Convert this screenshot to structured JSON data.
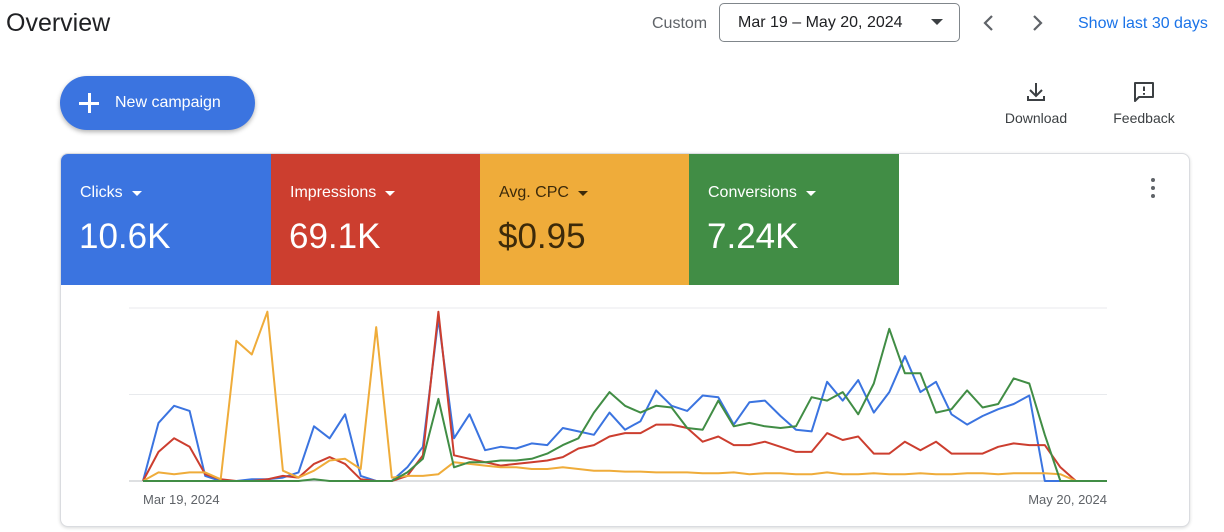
{
  "header": {
    "title": "Overview",
    "range_label": "Custom",
    "date_range": "Mar 19 – May 20, 2024",
    "show_last_label": "Show last 30 days"
  },
  "actions": {
    "new_campaign_label": "New campaign",
    "download_label": "Download",
    "feedback_label": "Feedback"
  },
  "metrics": [
    {
      "name": "Clicks",
      "value": "10.6K",
      "color": "#3b74e0"
    },
    {
      "name": "Impressions",
      "value": "69.1K",
      "color": "#cc3e2f"
    },
    {
      "name": "Avg. CPC",
      "value": "$0.95",
      "color": "#efac3a"
    },
    {
      "name": "Conversions",
      "value": "7.24K",
      "color": "#418d45"
    }
  ],
  "chart_data": {
    "type": "line",
    "x_start_label": "Mar 19, 2024",
    "x_end_label": "May 20, 2024",
    "grid": true,
    "y_range": [
      0,
      1
    ],
    "series": [
      {
        "name": "Clicks",
        "color": "#3b74e0",
        "values": [
          0,
          0.34,
          0.44,
          0.41,
          0.03,
          0,
          0,
          0.01,
          0.01,
          0.02,
          0.05,
          0.32,
          0.25,
          0.39,
          0.03,
          0,
          0,
          0.08,
          0.2,
          0.95,
          0.25,
          0.39,
          0.18,
          0.2,
          0.19,
          0.22,
          0.21,
          0.31,
          0.29,
          0.27,
          0.4,
          0.3,
          0.35,
          0.53,
          0.44,
          0.41,
          0.5,
          0.49,
          0.33,
          0.46,
          0.47,
          0.38,
          0.3,
          0.29,
          0.58,
          0.47,
          0.59,
          0.4,
          0.52,
          0.73,
          0.52,
          0.58,
          0.39,
          0.33,
          0.38,
          0.42,
          0.45,
          0.5,
          0,
          0,
          0,
          0,
          0
        ]
      },
      {
        "name": "Impressions",
        "color": "#cc3e2f",
        "values": [
          0,
          0.17,
          0.25,
          0.2,
          0.04,
          0.01,
          0,
          0,
          0.01,
          0.03,
          0.02,
          0.1,
          0.14,
          0.1,
          0.01,
          0,
          0,
          0.03,
          0.15,
          0.99,
          0.15,
          0.13,
          0.11,
          0.09,
          0.1,
          0.11,
          0.12,
          0.14,
          0.19,
          0.21,
          0.26,
          0.28,
          0.28,
          0.33,
          0.33,
          0.31,
          0.23,
          0.26,
          0.21,
          0.21,
          0.23,
          0.2,
          0.17,
          0.17,
          0.28,
          0.24,
          0.26,
          0.16,
          0.16,
          0.23,
          0.18,
          0.23,
          0.16,
          0.16,
          0.16,
          0.2,
          0.22,
          0.21,
          0.21,
          0.08,
          0,
          0,
          0
        ]
      },
      {
        "name": "Avg. CPC",
        "color": "#efac3a",
        "values": [
          0,
          0.05,
          0.04,
          0.05,
          0.05,
          0.01,
          0.82,
          0.74,
          0.99,
          0.06,
          0.02,
          0.06,
          0.12,
          0.13,
          0.07,
          0.9,
          0.02,
          0.03,
          0.03,
          0.04,
          0.11,
          0.1,
          0.09,
          0.08,
          0.08,
          0.07,
          0.07,
          0.08,
          0.07,
          0.06,
          0.06,
          0.055,
          0.055,
          0.05,
          0.05,
          0.05,
          0.045,
          0.045,
          0.05,
          0.04,
          0.045,
          0.045,
          0.04,
          0.04,
          0.05,
          0.04,
          0.04,
          0.045,
          0.04,
          0.04,
          0.045,
          0.04,
          0.04,
          0.045,
          0.045,
          0.04,
          0.045,
          0.045,
          0.045,
          0.04,
          0,
          0,
          0
        ]
      },
      {
        "name": "Conversions",
        "color": "#418d45",
        "values": [
          0,
          0,
          0,
          0,
          0,
          0,
          0,
          0,
          0,
          0,
          0,
          0.01,
          0,
          0,
          0,
          0,
          0,
          0.05,
          0.13,
          0.48,
          0.08,
          0.11,
          0.11,
          0.12,
          0.12,
          0.13,
          0.16,
          0.21,
          0.25,
          0.4,
          0.52,
          0.44,
          0.4,
          0.44,
          0.43,
          0.31,
          0.3,
          0.47,
          0.32,
          0.34,
          0.32,
          0.31,
          0.32,
          0.49,
          0.47,
          0.52,
          0.39,
          0.57,
          0.89,
          0.63,
          0.63,
          0.4,
          0.42,
          0.53,
          0.43,
          0.45,
          0.6,
          0.57,
          0.27,
          0,
          0,
          0,
          0
        ]
      }
    ]
  }
}
